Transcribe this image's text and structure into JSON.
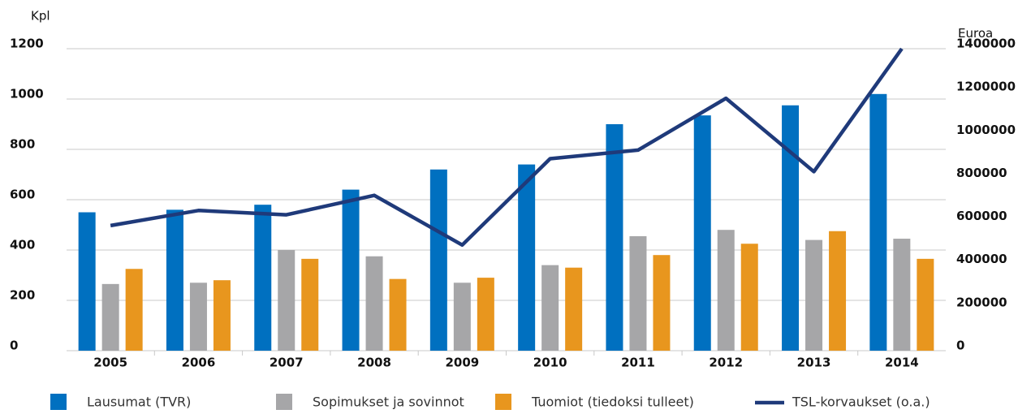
{
  "chart_data": {
    "type": "bar_line",
    "y_label": "Kpl",
    "y2_label": "Euroa",
    "categories": [
      "2005",
      "2006",
      "2007",
      "2008",
      "2009",
      "2010",
      "2011",
      "2012",
      "2013",
      "2014"
    ],
    "series": [
      {
        "name": "Lausumat (TVR)",
        "color": "#0070c0",
        "values": [
          550,
          560,
          580,
          640,
          720,
          740,
          900,
          935,
          975,
          1020
        ]
      },
      {
        "name": "Sopimukset ja sovinnot",
        "color": "#a6a6a8",
        "values": [
          265,
          270,
          400,
          375,
          270,
          340,
          455,
          480,
          440,
          445
        ]
      },
      {
        "name": "Tuomiot (tiedoksi tulleet)",
        "color": "#e8961e",
        "values": [
          325,
          280,
          365,
          285,
          290,
          330,
          380,
          425,
          475,
          365
        ]
      },
      {
        "name": "TSL-korvaukset (o.a.)",
        "color": "#1f3a7a",
        "axis": "y2",
        "type": "line",
        "values": [
          580000,
          650000,
          630000,
          720000,
          490000,
          890000,
          930000,
          1170000,
          830000,
          1400000
        ]
      }
    ],
    "ylim": [
      0,
      1200
    ],
    "yticks": [
      0,
      200,
      400,
      600,
      800,
      1000,
      1200
    ],
    "y2lim": [
      0,
      1400000
    ],
    "y2ticks": [
      0,
      200000,
      400000,
      600000,
      800000,
      1000000,
      1200000,
      1400000
    ],
    "grid": true,
    "legend": "bottom"
  }
}
